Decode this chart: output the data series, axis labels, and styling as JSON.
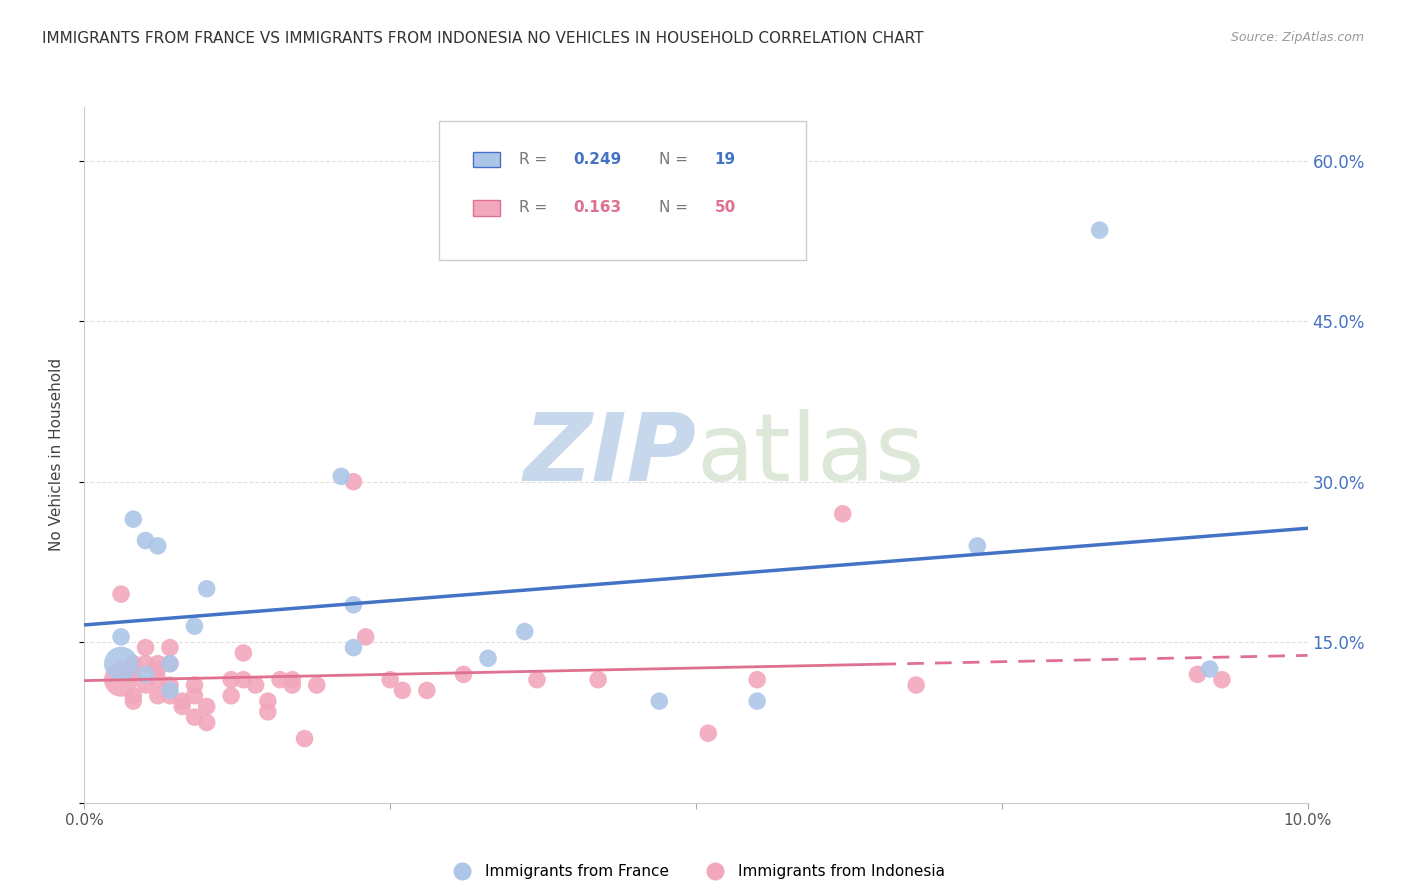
{
  "title": "IMMIGRANTS FROM FRANCE VS IMMIGRANTS FROM INDONESIA NO VEHICLES IN HOUSEHOLD CORRELATION CHART",
  "source": "Source: ZipAtlas.com",
  "ylabel": "No Vehicles in Household",
  "right_ytick_values": [
    0.0,
    0.15,
    0.3,
    0.45,
    0.6
  ],
  "right_ytick_labels": [
    "",
    "15.0%",
    "30.0%",
    "45.0%",
    "60.0%"
  ],
  "xlim": [
    0.0,
    0.1
  ],
  "ylim": [
    0.0,
    0.65
  ],
  "xtick_values": [
    0.0,
    0.025,
    0.05,
    0.075,
    0.1
  ],
  "xtick_labels": [
    "0.0%",
    "",
    "",
    "",
    "10.0%"
  ],
  "legend_r_france": "0.249",
  "legend_n_france": "19",
  "legend_r_indonesia": "0.163",
  "legend_n_indonesia": "50",
  "france_color": "#adc6e8",
  "indonesia_color": "#f2a8bc",
  "france_line_color": "#4472c4",
  "indonesia_line_color": "#e07090",
  "france_x": [
    0.003,
    0.004,
    0.005,
    0.005,
    0.006,
    0.007,
    0.007,
    0.009,
    0.01,
    0.021,
    0.022,
    0.022,
    0.033,
    0.036,
    0.047,
    0.055,
    0.073,
    0.092
  ],
  "france_y": [
    0.155,
    0.265,
    0.245,
    0.12,
    0.24,
    0.13,
    0.105,
    0.165,
    0.2,
    0.305,
    0.185,
    0.145,
    0.135,
    0.16,
    0.095,
    0.095,
    0.24,
    0.125
  ],
  "indonesia_x": [
    0.003,
    0.003,
    0.004,
    0.004,
    0.004,
    0.004,
    0.005,
    0.005,
    0.005,
    0.006,
    0.006,
    0.006,
    0.006,
    0.007,
    0.007,
    0.007,
    0.007,
    0.008,
    0.008,
    0.009,
    0.009,
    0.009,
    0.01,
    0.01,
    0.012,
    0.012,
    0.013,
    0.013,
    0.014,
    0.015,
    0.015,
    0.016,
    0.017,
    0.017,
    0.018,
    0.019,
    0.022,
    0.023,
    0.025,
    0.026,
    0.028,
    0.031,
    0.037,
    0.042,
    0.051,
    0.055,
    0.062,
    0.068,
    0.091,
    0.093
  ],
  "indonesia_y": [
    0.195,
    0.125,
    0.12,
    0.13,
    0.1,
    0.095,
    0.145,
    0.13,
    0.11,
    0.115,
    0.13,
    0.125,
    0.1,
    0.145,
    0.13,
    0.11,
    0.1,
    0.095,
    0.09,
    0.11,
    0.1,
    0.08,
    0.09,
    0.075,
    0.115,
    0.1,
    0.14,
    0.115,
    0.11,
    0.095,
    0.085,
    0.115,
    0.115,
    0.11,
    0.06,
    0.11,
    0.3,
    0.155,
    0.115,
    0.105,
    0.105,
    0.12,
    0.115,
    0.115,
    0.065,
    0.115,
    0.27,
    0.11,
    0.12,
    0.115
  ],
  "france_outlier_x": [
    0.083
  ],
  "france_outlier_y": [
    0.535
  ],
  "watermark_zip": "ZIP",
  "watermark_atlas": "atlas",
  "grid_color": "#e0e0e0",
  "bottom_legend_france": "Immigrants from France",
  "bottom_legend_indonesia": "Immigrants from Indonesia"
}
